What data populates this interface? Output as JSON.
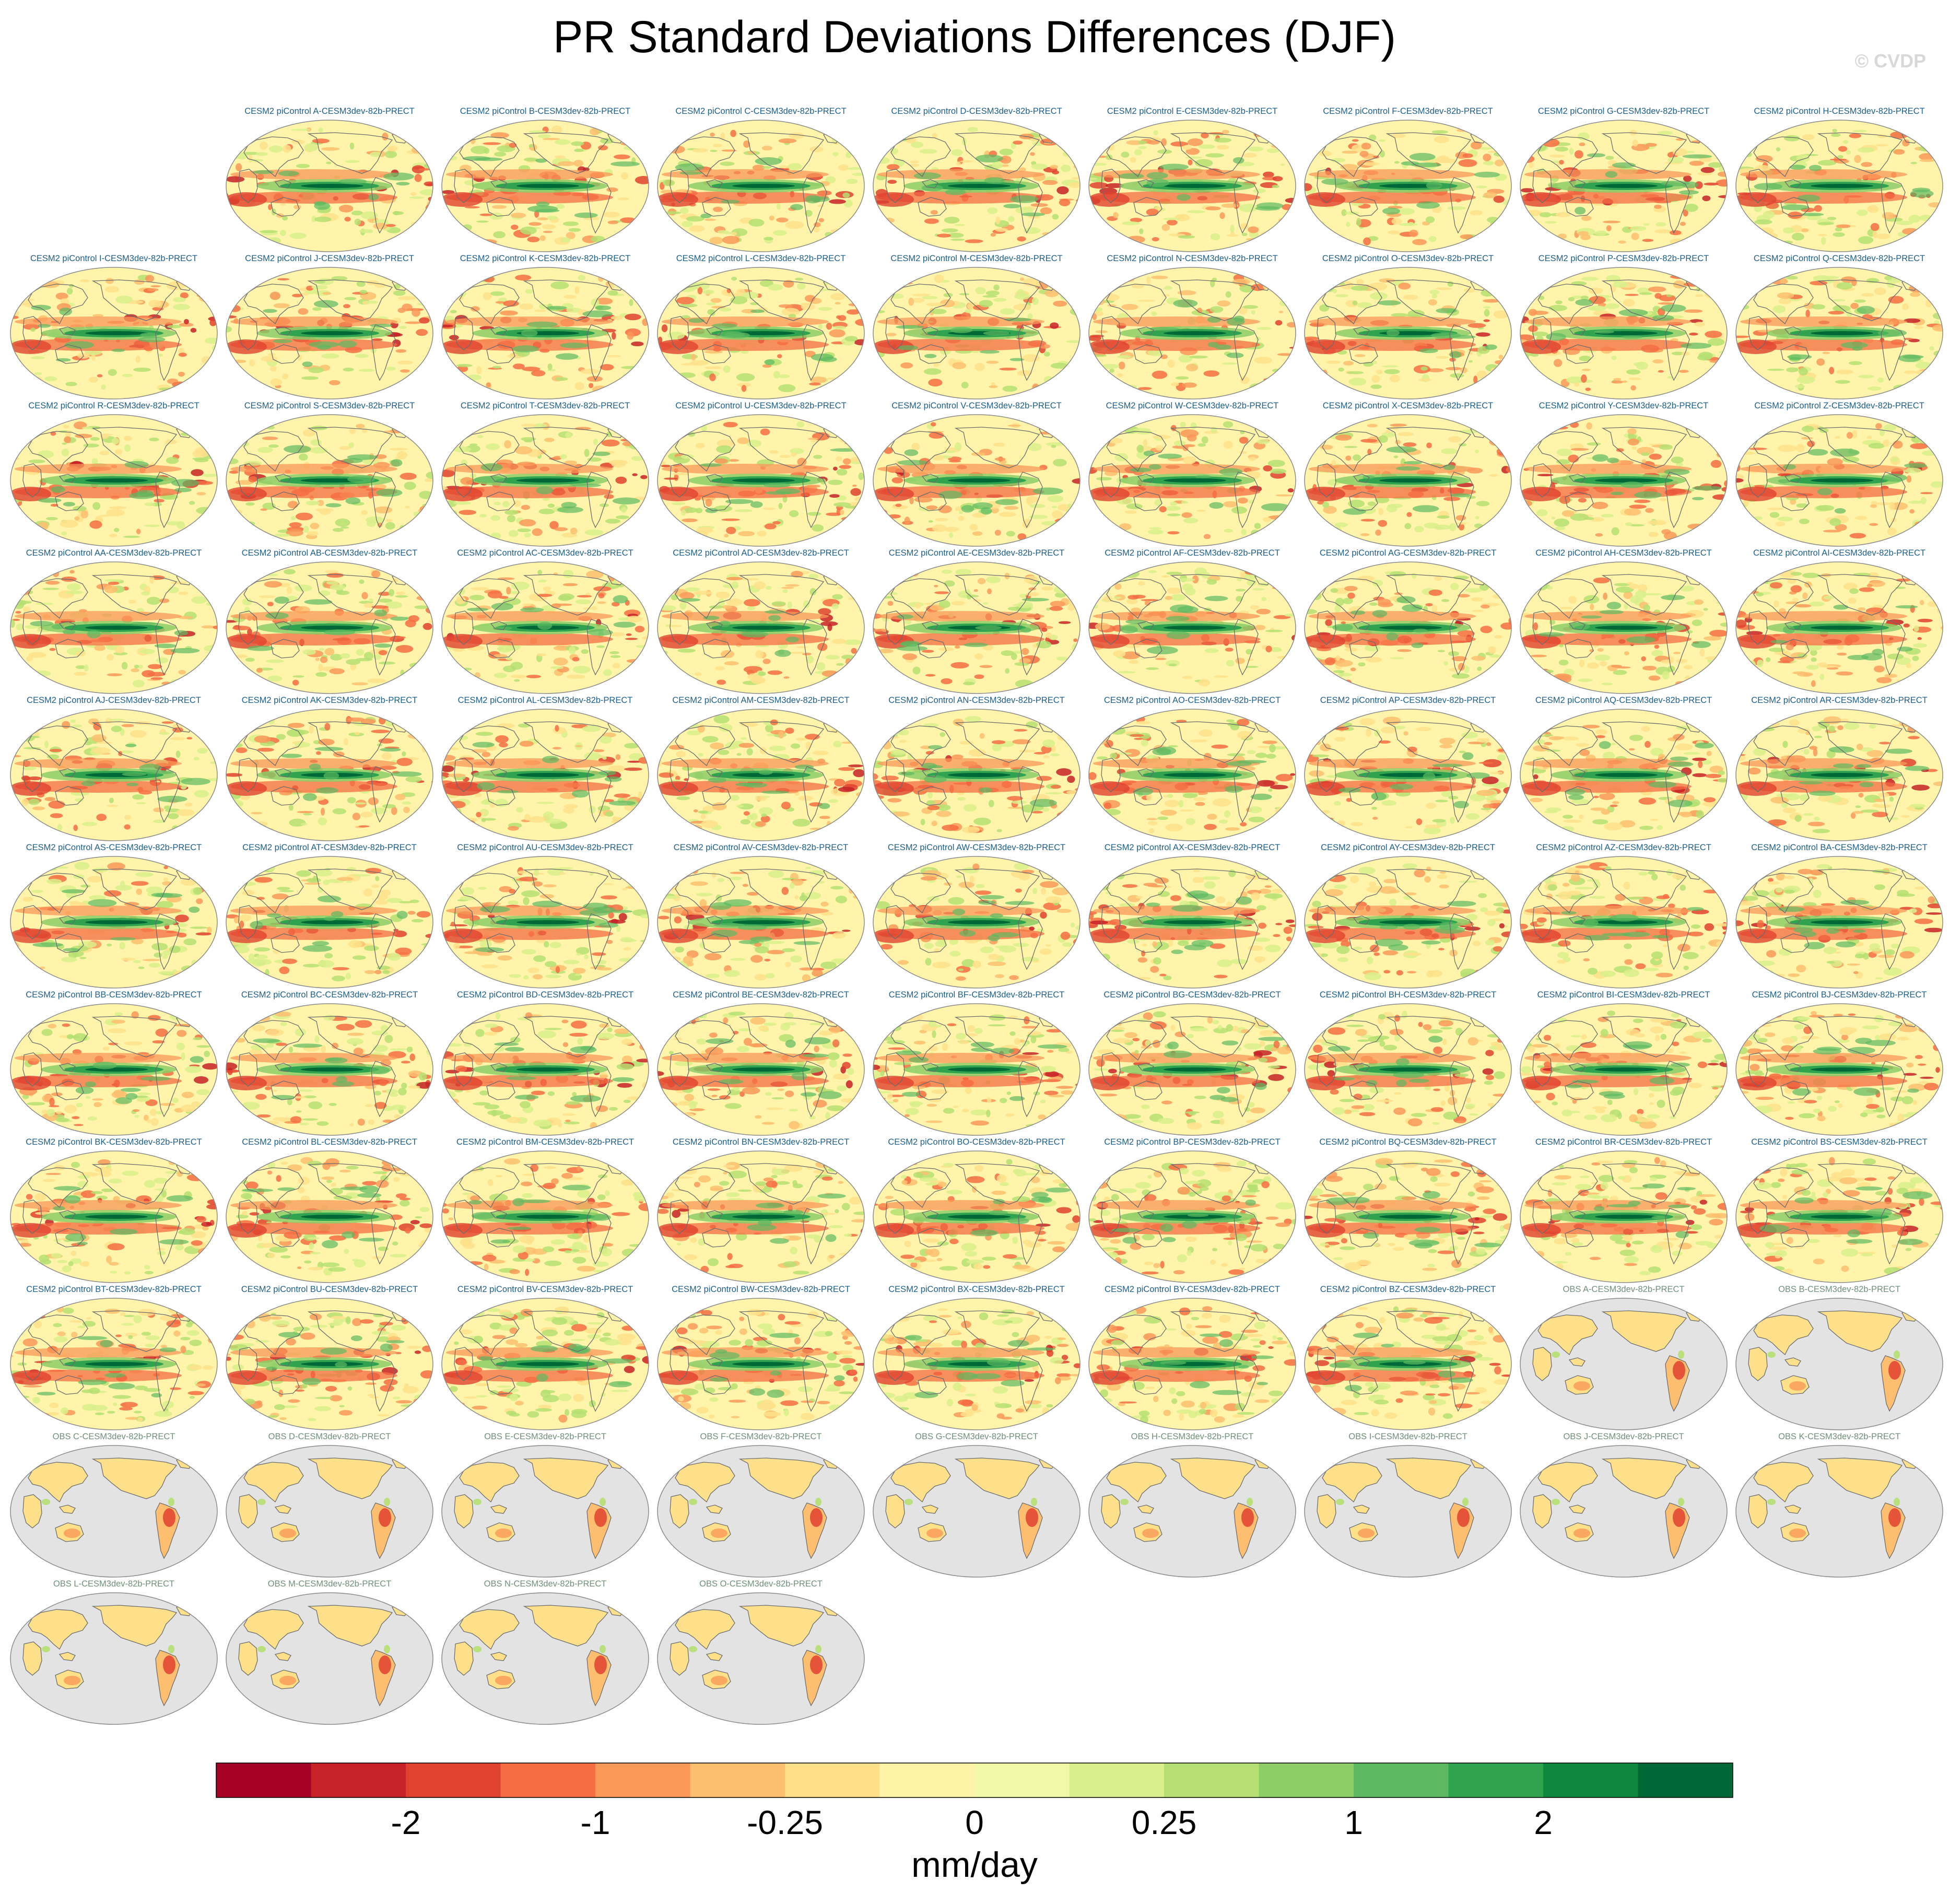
{
  "figure": {
    "title": "PR Standard Deviations Differences (DJF)",
    "watermark": "© CVDP",
    "units": "mm/day"
  },
  "panels": {
    "model_titles": [
      "CESM2 piControl A-CESM3dev-82b-PRECT",
      "CESM2 piControl B-CESM3dev-82b-PRECT",
      "CESM2 piControl C-CESM3dev-82b-PRECT",
      "CESM2 piControl D-CESM3dev-82b-PRECT",
      "CESM2 piControl E-CESM3dev-82b-PRECT",
      "CESM2 piControl F-CESM3dev-82b-PRECT",
      "CESM2 piControl G-CESM3dev-82b-PRECT",
      "CESM2 piControl H-CESM3dev-82b-PRECT",
      "CESM2 piControl I-CESM3dev-82b-PRECT",
      "CESM2 piControl J-CESM3dev-82b-PRECT",
      "CESM2 piControl K-CESM3dev-82b-PRECT",
      "CESM2 piControl L-CESM3dev-82b-PRECT",
      "CESM2 piControl M-CESM3dev-82b-PRECT",
      "CESM2 piControl N-CESM3dev-82b-PRECT",
      "CESM2 piControl O-CESM3dev-82b-PRECT",
      "CESM2 piControl P-CESM3dev-82b-PRECT",
      "CESM2 piControl Q-CESM3dev-82b-PRECT",
      "CESM2 piControl R-CESM3dev-82b-PRECT",
      "CESM2 piControl S-CESM3dev-82b-PRECT",
      "CESM2 piControl T-CESM3dev-82b-PRECT",
      "CESM2 piControl U-CESM3dev-82b-PRECT",
      "CESM2 piControl V-CESM3dev-82b-PRECT",
      "CESM2 piControl W-CESM3dev-82b-PRECT",
      "CESM2 piControl X-CESM3dev-82b-PRECT",
      "CESM2 piControl Y-CESM3dev-82b-PRECT",
      "CESM2 piControl Z-CESM3dev-82b-PRECT",
      "CESM2 piControl AA-CESM3dev-82b-PRECT",
      "CESM2 piControl AB-CESM3dev-82b-PRECT",
      "CESM2 piControl AC-CESM3dev-82b-PRECT",
      "CESM2 piControl AD-CESM3dev-82b-PRECT",
      "CESM2 piControl AE-CESM3dev-82b-PRECT",
      "CESM2 piControl AF-CESM3dev-82b-PRECT",
      "CESM2 piControl AG-CESM3dev-82b-PRECT",
      "CESM2 piControl AH-CESM3dev-82b-PRECT",
      "CESM2 piControl AI-CESM3dev-82b-PRECT",
      "CESM2 piControl AJ-CESM3dev-82b-PRECT",
      "CESM2 piControl AK-CESM3dev-82b-PRECT",
      "CESM2 piControl AL-CESM3dev-82b-PRECT",
      "CESM2 piControl AM-CESM3dev-82b-PRECT",
      "CESM2 piControl AN-CESM3dev-82b-PRECT",
      "CESM2 piControl AO-CESM3dev-82b-PRECT",
      "CESM2 piControl AP-CESM3dev-82b-PRECT",
      "CESM2 piControl AQ-CESM3dev-82b-PRECT",
      "CESM2 piControl AR-CESM3dev-82b-PRECT",
      "CESM2 piControl AS-CESM3dev-82b-PRECT",
      "CESM2 piControl AT-CESM3dev-82b-PRECT",
      "CESM2 piControl AU-CESM3dev-82b-PRECT",
      "CESM2 piControl AV-CESM3dev-82b-PRECT",
      "CESM2 piControl AW-CESM3dev-82b-PRECT",
      "CESM2 piControl AX-CESM3dev-82b-PRECT",
      "CESM2 piControl AY-CESM3dev-82b-PRECT",
      "CESM2 piControl AZ-CESM3dev-82b-PRECT",
      "CESM2 piControl BA-CESM3dev-82b-PRECT",
      "CESM2 piControl BB-CESM3dev-82b-PRECT",
      "CESM2 piControl BC-CESM3dev-82b-PRECT",
      "CESM2 piControl BD-CESM3dev-82b-PRECT",
      "CESM2 piControl BE-CESM3dev-82b-PRECT",
      "CESM2 piControl BF-CESM3dev-82b-PRECT",
      "CESM2 piControl BG-CESM3dev-82b-PRECT",
      "CESM2 piControl BH-CESM3dev-82b-PRECT",
      "CESM2 piControl BI-CESM3dev-82b-PRECT",
      "CESM2 piControl BJ-CESM3dev-82b-PRECT",
      "CESM2 piControl BK-CESM3dev-82b-PRECT",
      "CESM2 piControl BL-CESM3dev-82b-PRECT",
      "CESM2 piControl BM-CESM3dev-82b-PRECT",
      "CESM2 piControl BN-CESM3dev-82b-PRECT",
      "CESM2 piControl BO-CESM3dev-82b-PRECT",
      "CESM2 piControl BP-CESM3dev-82b-PRECT",
      "CESM2 piControl BQ-CESM3dev-82b-PRECT",
      "CESM2 piControl BR-CESM3dev-82b-PRECT",
      "CESM2 piControl BS-CESM3dev-82b-PRECT",
      "CESM2 piControl BT-CESM3dev-82b-PRECT",
      "CESM2 piControl BU-CESM3dev-82b-PRECT",
      "CESM2 piControl BV-CESM3dev-82b-PRECT",
      "CESM2 piControl BW-CESM3dev-82b-PRECT",
      "CESM2 piControl BX-CESM3dev-82b-PRECT",
      "CESM2 piControl BY-CESM3dev-82b-PRECT",
      "CESM2 piControl BZ-CESM3dev-82b-PRECT"
    ],
    "obs_titles": [
      "OBS A-CESM3dev-82b-PRECT",
      "OBS B-CESM3dev-82b-PRECT",
      "OBS C-CESM3dev-82b-PRECT",
      "OBS D-CESM3dev-82b-PRECT",
      "OBS E-CESM3dev-82b-PRECT",
      "OBS F-CESM3dev-82b-PRECT",
      "OBS G-CESM3dev-82b-PRECT",
      "OBS H-CESM3dev-82b-PRECT",
      "OBS I-CESM3dev-82b-PRECT",
      "OBS J-CESM3dev-82b-PRECT",
      "OBS K-CESM3dev-82b-PRECT",
      "OBS L-CESM3dev-82b-PRECT",
      "OBS M-CESM3dev-82b-PRECT",
      "OBS N-CESM3dev-82b-PRECT",
      "OBS O-CESM3dev-82b-PRECT"
    ]
  },
  "colorbar": {
    "colors": [
      "#a50026",
      "#c62227",
      "#e0422f",
      "#f46d43",
      "#f99858",
      "#fdbe70",
      "#fee08b",
      "#fff3a8",
      "#f3f8a8",
      "#d9ef8b",
      "#b5df72",
      "#8ccd67",
      "#5db961",
      "#2fa350",
      "#0f873e",
      "#006837"
    ],
    "tick_labels": [
      "-2",
      "-1",
      "-0.25",
      "0",
      "0.25",
      "1",
      "2"
    ]
  },
  "colors": {
    "model_title": "#1b5e8a",
    "obs_title": "#6f8f7a",
    "ocean_neutral": "#fff4aa",
    "obs_ocean": "#e3e3e3",
    "coast": "#6b6b6b"
  }
}
